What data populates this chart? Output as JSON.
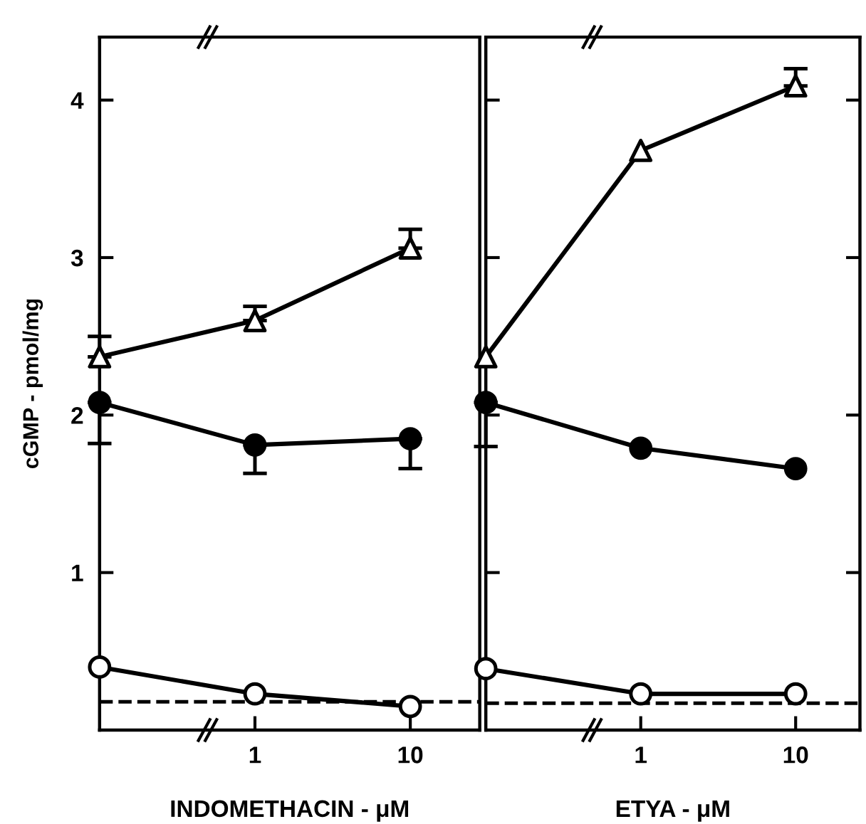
{
  "chart_data": [
    {
      "type": "line",
      "xlabel": "INDOMETHACIN - μM",
      "ylabel": "cGMP - pmol/mg",
      "log": "x",
      "xlim": [
        0.1,
        28
      ],
      "xticks": [
        1,
        10
      ],
      "ylim": [
        0,
        4.4
      ],
      "yticks": [
        1,
        2,
        3,
        4
      ],
      "line_style": "solid",
      "x": [
        0.1,
        1,
        10
      ],
      "series": [
        {
          "color": "#000000",
          "marker": "triangle",
          "colors": [
            "#ffffff",
            "#ffffff",
            "#ffffff"
          ],
          "values": [
            2.37,
            2.6,
            3.06
          ],
          "errors": [
            [
              2.37,
              2.5
            ],
            [
              2.6,
              2.69
            ],
            [
              3.06,
              3.18
            ]
          ]
        },
        {
          "color": "#000000",
          "marker": "circle",
          "colors": [
            "#000000",
            "#000000",
            "#000000"
          ],
          "values": [
            2.08,
            1.81,
            1.85
          ],
          "errors": [
            [
              1.82,
              2.08
            ],
            [
              1.63,
              1.81
            ],
            [
              1.66,
              1.85
            ]
          ]
        },
        {
          "color": "#000000",
          "marker": "circle",
          "colors": [
            "#ffffff",
            "#ffffff",
            "#ffffff"
          ],
          "values": [
            0.4,
            0.23,
            0.15
          ]
        }
      ],
      "ref_lines": [
        {
          "axis": "y",
          "value": 0.18,
          "line_style": "dashed",
          "color": "#000000"
        }
      ]
    },
    {
      "type": "line",
      "xlabel": "ETYA - μM",
      "log": "x",
      "xlim": [
        0.1,
        26
      ],
      "xticks": [
        1,
        10
      ],
      "ylim": [
        0,
        4.4
      ],
      "yticks": [
        1,
        2,
        3,
        4
      ],
      "tick_labels": "x",
      "line_style": "solid",
      "x": [
        0.1,
        1,
        10
      ],
      "series": [
        {
          "color": "#000000",
          "marker": "triangle",
          "colors": [
            "#ffffff",
            "#ffffff",
            "#ffffff"
          ],
          "values": [
            2.37,
            3.68,
            4.09
          ],
          "errors": [
            null,
            null,
            [
              4.09,
              4.2
            ]
          ]
        },
        {
          "color": "#000000",
          "marker": "circle",
          "colors": [
            "#000000",
            "#000000",
            "#000000"
          ],
          "values": [
            2.08,
            1.79,
            1.66
          ],
          "errors": [
            [
              1.8,
              2.08
            ],
            null,
            null
          ]
        },
        {
          "color": "#000000",
          "marker": "circle",
          "colors": [
            "#ffffff",
            "#ffffff",
            "#ffffff"
          ],
          "values": [
            0.39,
            0.23,
            0.23
          ]
        }
      ],
      "ref_lines": [
        {
          "axis": "y",
          "value": 0.17,
          "line_style": "dashed",
          "color": "#000000"
        }
      ]
    }
  ]
}
